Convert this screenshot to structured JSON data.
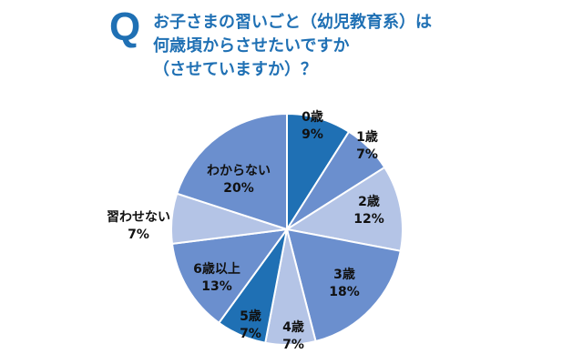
{
  "question": {
    "mark": "Q",
    "lines": [
      "お子さまの習いごと（幼児教育系）は",
      "何歳頃からさせたいですか",
      "（させていますか）？"
    ]
  },
  "colors": {
    "question": "#1f70b4",
    "dark": "#1f70b4",
    "medium": "#6b8fce",
    "light": "#b4c4e6",
    "text": "#111111"
  },
  "chart_data": {
    "type": "pie",
    "start": "12 o'clock",
    "direction": "clockwise",
    "slices": [
      {
        "label": "0歳",
        "value": 9,
        "value_text": "9%",
        "tone": "dark"
      },
      {
        "label": "1歳",
        "value": 7,
        "value_text": "7%",
        "tone": "medium"
      },
      {
        "label": "2歳",
        "value": 12,
        "value_text": "12%",
        "tone": "light"
      },
      {
        "label": "3歳",
        "value": 18,
        "value_text": "18%",
        "tone": "medium"
      },
      {
        "label": "4歳",
        "value": 7,
        "value_text": "7%",
        "tone": "light"
      },
      {
        "label": "5歳",
        "value": 7,
        "value_text": "7%",
        "tone": "dark"
      },
      {
        "label": "6歳以上",
        "value": 13,
        "value_text": "13%",
        "tone": "medium"
      },
      {
        "label": "習わせない",
        "value": 7,
        "value_text": "7%",
        "tone": "light"
      },
      {
        "label": "わからない",
        "value": 20,
        "value_text": "20%",
        "tone": "medium"
      }
    ]
  }
}
